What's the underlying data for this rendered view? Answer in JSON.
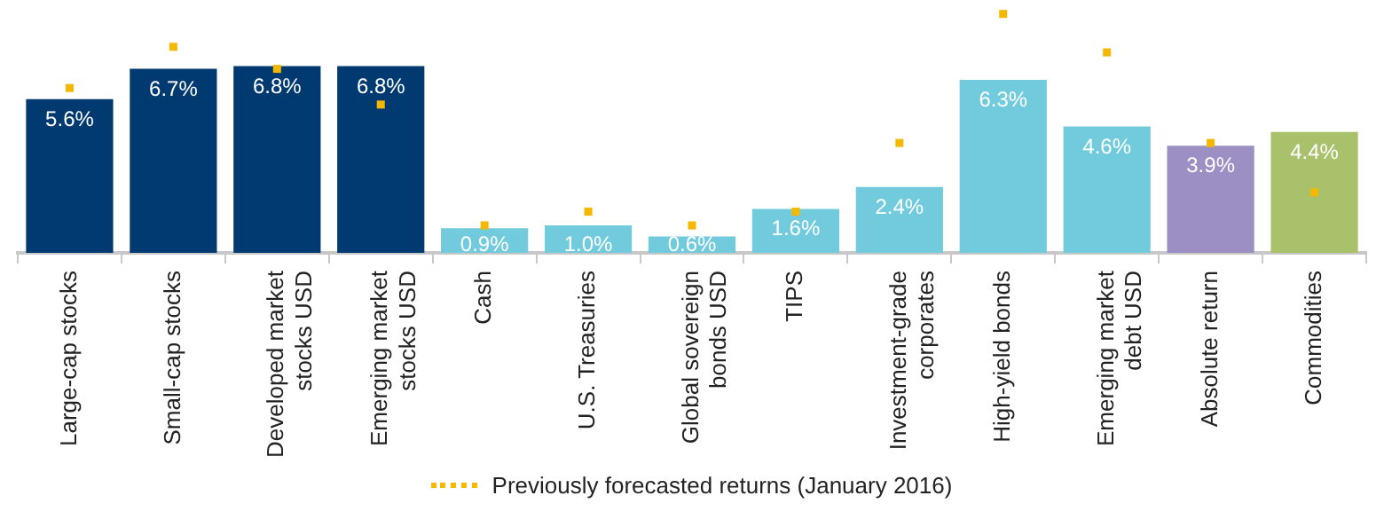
{
  "chart_data": {
    "type": "bar",
    "categories": [
      "Large-cap stocks",
      "Small-cap stocks",
      "Developed market stocks USD",
      "Emerging market stocks USD",
      "Cash",
      "U.S. Treasuries",
      "Global sovereign bonds USD",
      "TIPS",
      "Investment-grade corporates",
      "High-yield bonds",
      "Emerging market debt USD",
      "Absolute return",
      "Commodities"
    ],
    "tick_labels": "x",
    "grid": false,
    "legend": "bottom",
    "series": [
      {
        "values": [
          5.6,
          6.7,
          6.8,
          6.8,
          0.9,
          1.0,
          0.6,
          1.6,
          2.4,
          6.3,
          4.6,
          3.9,
          4.4
        ],
        "colors": [
          "#003a70",
          "#003a70",
          "#003a70",
          "#003a70",
          "#72cbdd",
          "#72cbdd",
          "#72cbdd",
          "#72cbdd",
          "#72cbdd",
          "#72cbdd",
          "#72cbdd",
          "#9b8fc4",
          "#a9c16a"
        ],
        "value_labels": [
          "5.6%",
          "6.7%",
          "6.8%",
          "6.8%",
          "0.9%",
          "1.0%",
          "0.6%",
          "1.6%",
          "2.4%",
          "6.3%",
          "4.6%",
          "3.9%",
          "4.4%"
        ]
      },
      {
        "type": "scatter",
        "name": "Previously forecasted returns (January 2016)",
        "color": "#f5b800",
        "marker": "square",
        "line_style": "dotted",
        "values": [
          6.0,
          7.5,
          6.7,
          5.4,
          1.0,
          1.5,
          1.0,
          1.5,
          4.0,
          8.7,
          7.3,
          4.0,
          2.2
        ]
      }
    ]
  }
}
